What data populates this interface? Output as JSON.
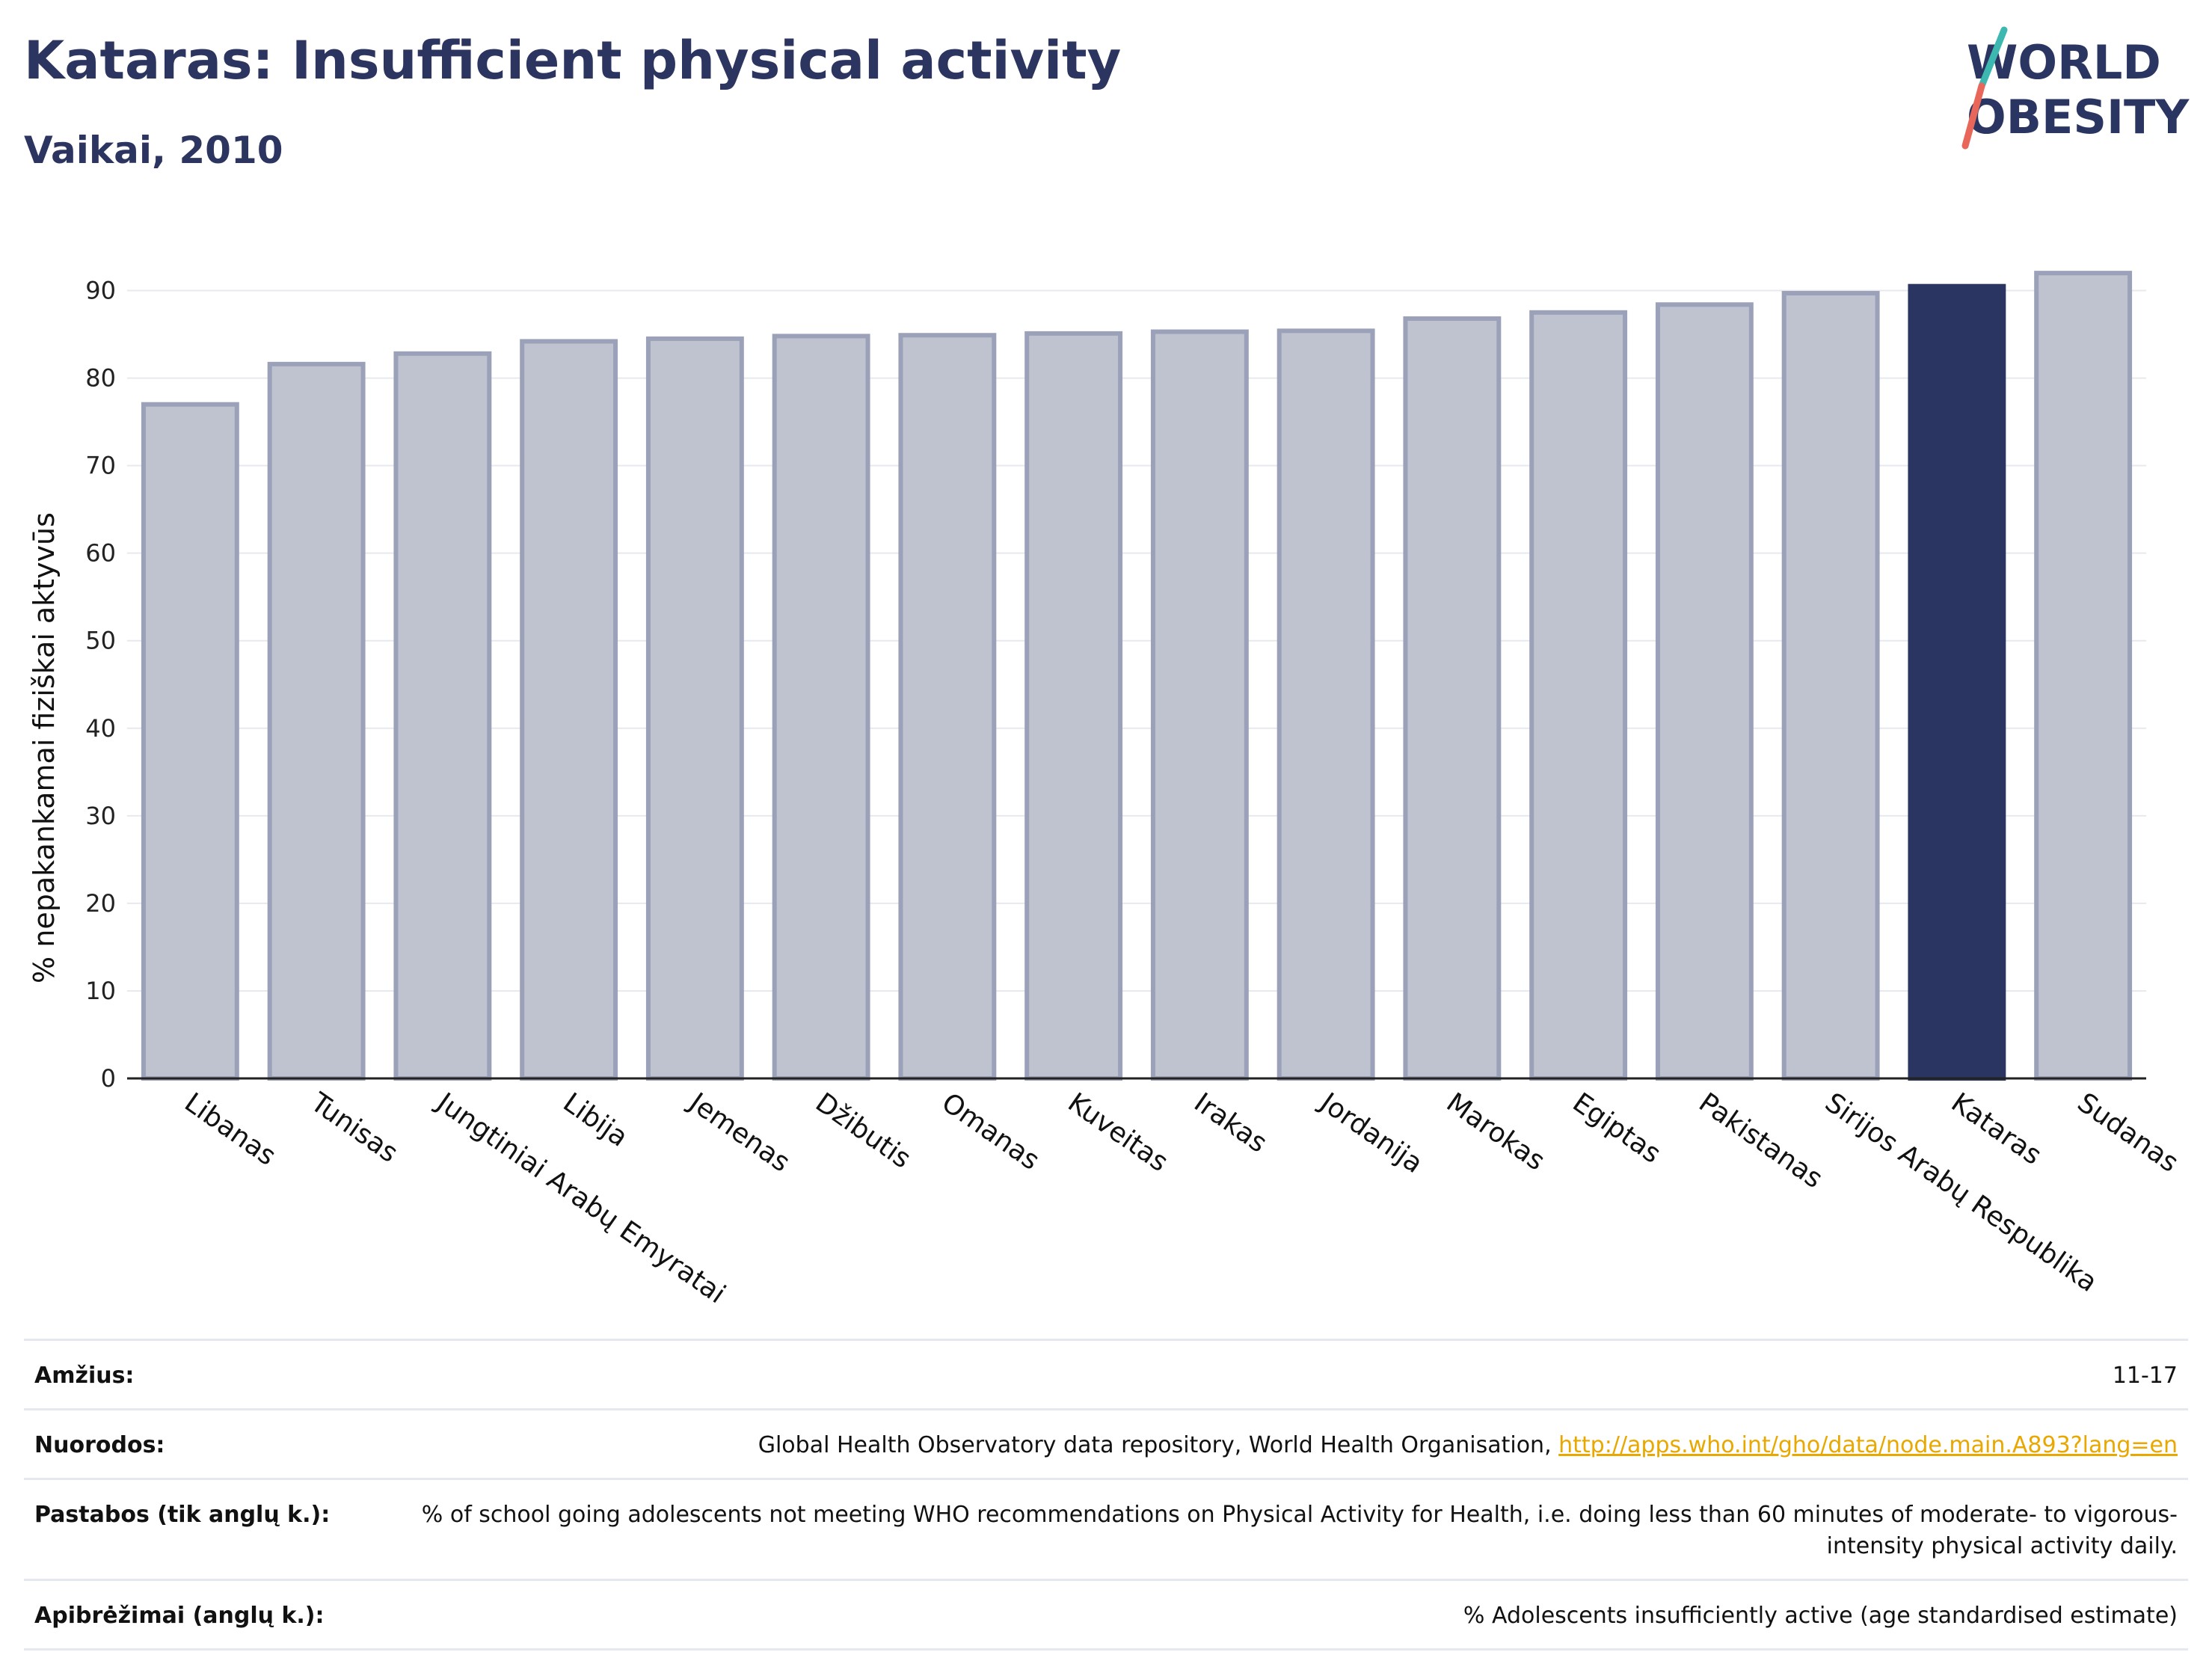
{
  "header": {
    "title": "Kataras: Insufficient physical activity",
    "subtitle": "Vaikai, 2010"
  },
  "logo": {
    "line1": "WORLD",
    "line2": "OBESITY"
  },
  "colors": {
    "bar": "#bfc2cf",
    "bar_stroke": "#9ba1b8",
    "highlight": "#2a3561",
    "grid": "#e8e9ee",
    "accent_teal": "#3cb8b0",
    "accent_coral": "#e8675a"
  },
  "chart_data": {
    "type": "bar",
    "ylabel": "% nepakankamai fiziškai aktyvūs",
    "ylim": [
      0,
      95
    ],
    "yticks": [
      0,
      10,
      20,
      30,
      40,
      50,
      60,
      70,
      80,
      90
    ],
    "grid": true,
    "highlight": "Kataras",
    "categories": [
      "Libanas",
      "Tunisas",
      "Jungtiniai Arabų Emyratai",
      "Libija",
      "Jemenas",
      "Džibutis",
      "Omanas",
      "Kuveitas",
      "Irakas",
      "Jordanija",
      "Marokas",
      "Egiptas",
      "Pakistanas",
      "Sirijos Arabų Respublika",
      "Kataras",
      "Sudanas"
    ],
    "values": [
      77.0,
      81.6,
      82.8,
      84.2,
      84.5,
      84.8,
      84.9,
      85.1,
      85.3,
      85.4,
      86.8,
      87.5,
      88.4,
      89.7,
      90.5,
      92.0
    ]
  },
  "info": [
    {
      "label": "Amžius:",
      "value": "11-17"
    },
    {
      "label": "Nuorodos:",
      "value": "Global Health Observatory data repository, World Health Organisation, ",
      "link": "http://apps.who.int/gho/data/node.main.A893?lang=en"
    },
    {
      "label": "Pastabos (tik anglų k.):",
      "value": "% of school going adolescents not meeting WHO recommendations on Physical Activity for Health, i.e. doing less than 60 minutes of moderate- to vigorous-intensity physical activity daily."
    },
    {
      "label": "Apibrėžimai (anglų k.):",
      "value": "% Adolescents insufficiently active (age standardised estimate)"
    }
  ]
}
